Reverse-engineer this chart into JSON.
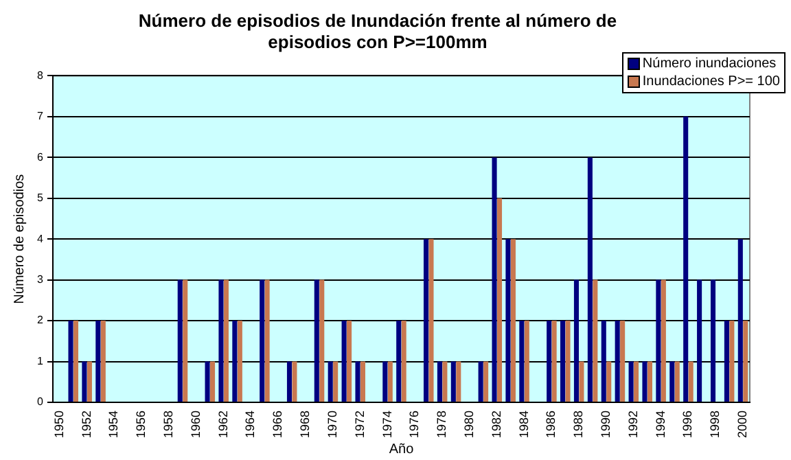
{
  "chart_data": {
    "type": "bar",
    "title": "Número de episodios de Inundación frente al número de episodios con P>=100mm",
    "xlabel": "Año",
    "ylabel": "Número de episodios",
    "categories": [
      "1950",
      null,
      "1952",
      null,
      "1954",
      null,
      "1956",
      null,
      "1958",
      null,
      "1960",
      null,
      "1962",
      null,
      "1964",
      null,
      "1966",
      null,
      "1968",
      null,
      "1970",
      null,
      "1972",
      null,
      "1974",
      null,
      "1976",
      null,
      "1978",
      null,
      "1980",
      null,
      "1982",
      null,
      "1984",
      null,
      "1986",
      null,
      "1988",
      null,
      "1990",
      null,
      "1992",
      null,
      "1994",
      null,
      "1996",
      null,
      "1998",
      null,
      "2000"
    ],
    "series": [
      {
        "name": "Número inundaciones",
        "color": "#000080",
        "values": [
          0,
          2,
          1,
          2,
          0,
          0,
          0,
          0,
          0,
          3,
          0,
          1,
          3,
          2,
          0,
          3,
          0,
          1,
          0,
          3,
          1,
          2,
          1,
          0,
          1,
          2,
          0,
          4,
          1,
          1,
          0,
          1,
          6,
          4,
          2,
          0,
          2,
          2,
          3,
          6,
          2,
          2,
          1,
          1,
          3,
          1,
          7,
          3,
          3,
          2,
          4
        ]
      },
      {
        "name": "Inundaciones P>= 100",
        "color": "#c87850",
        "values": [
          0,
          2,
          1,
          2,
          0,
          0,
          0,
          0,
          0,
          3,
          0,
          1,
          3,
          2,
          0,
          3,
          0,
          1,
          0,
          3,
          1,
          2,
          1,
          0,
          1,
          2,
          0,
          4,
          1,
          1,
          0,
          1,
          5,
          4,
          2,
          0,
          2,
          2,
          1,
          3,
          1,
          2,
          1,
          1,
          3,
          1,
          1,
          0,
          0,
          2,
          2
        ]
      }
    ],
    "ylim": [
      0,
      8
    ],
    "yticks": [
      0,
      1,
      2,
      3,
      4,
      5,
      6,
      7,
      8
    ],
    "grid": "y",
    "legend": "top right"
  }
}
